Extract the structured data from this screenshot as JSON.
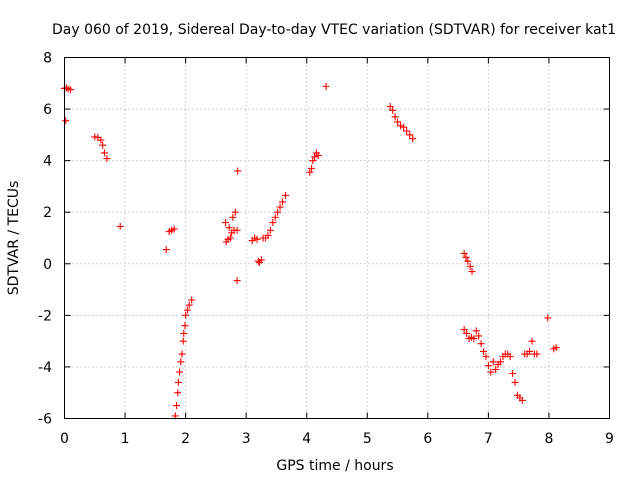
{
  "chart_data": {
    "type": "scatter",
    "title": "Day 060 of 2019, Sidereal Day-to-day VTEC variation (SDTVAR) for receiver kat1",
    "xlabel": "GPS time / hours",
    "ylabel": "SDTVAR / TECUs",
    "xlim": [
      0,
      9
    ],
    "ylim": [
      -6,
      8
    ],
    "xticks": [
      "0",
      "1",
      "2",
      "3",
      "4",
      "5",
      "6",
      "7",
      "8",
      "9"
    ],
    "yticks": [
      "-6",
      "-4",
      "-2",
      "0",
      "2",
      "4",
      "6",
      "8"
    ],
    "grid": true,
    "marker": "plus",
    "color": "#ff0000",
    "series": [
      {
        "name": "kat1",
        "points": [
          [
            0.0,
            6.8
          ],
          [
            0.03,
            6.82
          ],
          [
            0.06,
            6.78
          ],
          [
            0.1,
            6.75
          ],
          [
            0.02,
            5.55
          ],
          [
            0.5,
            4.92
          ],
          [
            0.55,
            4.9
          ],
          [
            0.6,
            4.8
          ],
          [
            0.63,
            4.6
          ],
          [
            0.66,
            4.3
          ],
          [
            0.7,
            4.08
          ],
          [
            0.92,
            1.45
          ],
          [
            1.68,
            0.55
          ],
          [
            1.73,
            1.25
          ],
          [
            1.77,
            1.3
          ],
          [
            1.81,
            1.35
          ],
          [
            1.83,
            -5.9
          ],
          [
            1.85,
            -5.5
          ],
          [
            1.87,
            -5.0
          ],
          [
            1.88,
            -4.6
          ],
          [
            1.9,
            -4.2
          ],
          [
            1.92,
            -3.8
          ],
          [
            1.94,
            -3.5
          ],
          [
            1.96,
            -3.0
          ],
          [
            1.97,
            -2.7
          ],
          [
            1.99,
            -2.4
          ],
          [
            2.0,
            -2.0
          ],
          [
            2.03,
            -1.8
          ],
          [
            2.06,
            -1.6
          ],
          [
            2.1,
            -1.4
          ],
          [
            2.66,
            1.6
          ],
          [
            2.67,
            0.85
          ],
          [
            2.7,
            0.95
          ],
          [
            2.72,
            1.4
          ],
          [
            2.74,
            1.0
          ],
          [
            2.76,
            1.2
          ],
          [
            2.78,
            1.8
          ],
          [
            2.8,
            1.3
          ],
          [
            2.82,
            2.0
          ],
          [
            2.85,
            1.3
          ],
          [
            2.86,
            3.6
          ],
          [
            2.85,
            -0.65
          ],
          [
            3.1,
            0.9
          ],
          [
            3.14,
            1.0
          ],
          [
            3.18,
            0.95
          ],
          [
            3.2,
            0.1
          ],
          [
            3.22,
            0.05
          ],
          [
            3.25,
            0.15
          ],
          [
            3.28,
            1.0
          ],
          [
            3.32,
            1.0
          ],
          [
            3.36,
            1.1
          ],
          [
            3.4,
            1.3
          ],
          [
            3.44,
            1.6
          ],
          [
            3.48,
            1.8
          ],
          [
            3.52,
            2.0
          ],
          [
            3.56,
            2.2
          ],
          [
            3.6,
            2.4
          ],
          [
            3.65,
            2.65
          ],
          [
            4.05,
            3.55
          ],
          [
            4.08,
            3.7
          ],
          [
            4.1,
            4.0
          ],
          [
            4.13,
            4.15
          ],
          [
            4.16,
            4.3
          ],
          [
            4.19,
            4.2
          ],
          [
            4.32,
            6.88
          ],
          [
            5.38,
            6.1
          ],
          [
            5.42,
            5.95
          ],
          [
            5.46,
            5.7
          ],
          [
            5.5,
            5.5
          ],
          [
            5.55,
            5.35
          ],
          [
            5.6,
            5.3
          ],
          [
            5.65,
            5.15
          ],
          [
            5.7,
            5.0
          ],
          [
            5.75,
            4.85
          ],
          [
            6.6,
            0.4
          ],
          [
            6.63,
            0.25
          ],
          [
            6.66,
            0.1
          ],
          [
            6.7,
            -0.1
          ],
          [
            6.73,
            -0.3
          ],
          [
            6.6,
            -2.55
          ],
          [
            6.64,
            -2.7
          ],
          [
            6.68,
            -2.9
          ],
          [
            6.72,
            -2.85
          ],
          [
            6.76,
            -2.9
          ],
          [
            6.8,
            -2.6
          ],
          [
            6.84,
            -2.8
          ],
          [
            6.88,
            -3.1
          ],
          [
            6.92,
            -3.4
          ],
          [
            6.96,
            -3.6
          ],
          [
            7.0,
            -3.95
          ],
          [
            7.04,
            -4.2
          ],
          [
            7.08,
            -3.8
          ],
          [
            7.12,
            -4.1
          ],
          [
            7.16,
            -3.9
          ],
          [
            7.2,
            -3.8
          ],
          [
            7.24,
            -3.6
          ],
          [
            7.28,
            -3.5
          ],
          [
            7.32,
            -3.5
          ],
          [
            7.36,
            -3.6
          ],
          [
            7.4,
            -4.25
          ],
          [
            7.44,
            -4.6
          ],
          [
            7.48,
            -5.1
          ],
          [
            7.52,
            -5.2
          ],
          [
            7.56,
            -5.3
          ],
          [
            7.6,
            -3.5
          ],
          [
            7.64,
            -3.5
          ],
          [
            7.68,
            -3.4
          ],
          [
            7.72,
            -3.0
          ],
          [
            7.76,
            -3.5
          ],
          [
            7.8,
            -3.5
          ],
          [
            7.98,
            -2.1
          ],
          [
            8.08,
            -3.3
          ],
          [
            8.12,
            -3.25
          ]
        ]
      }
    ]
  }
}
